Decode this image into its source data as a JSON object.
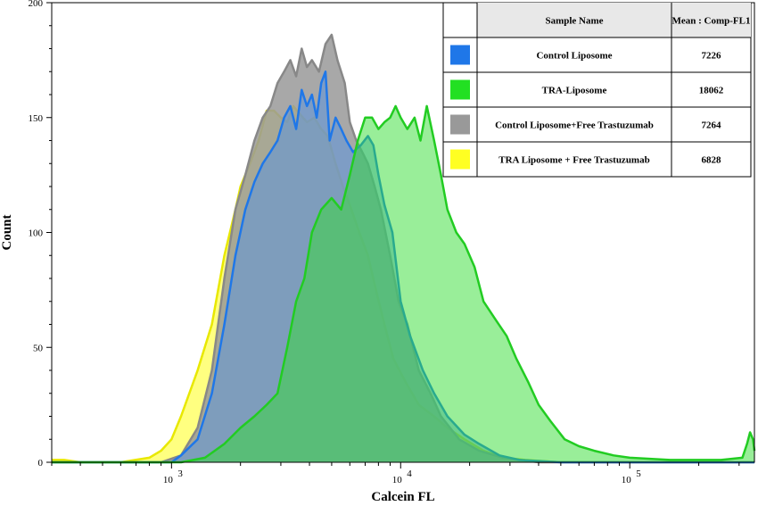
{
  "chart_data": {
    "type": "area",
    "xlabel": "Calcein FL",
    "ylabel": "Count",
    "x_scale": "log",
    "xlim": [
      300,
      350000
    ],
    "ylim": [
      0,
      200
    ],
    "y_ticks": [
      0,
      50,
      100,
      150,
      200
    ],
    "x_ticks": [
      {
        "value": 1000,
        "base": "10",
        "exp": "3"
      },
      {
        "value": 10000,
        "base": "10",
        "exp": "4"
      },
      {
        "value": 100000,
        "base": "10",
        "exp": "5"
      }
    ],
    "grid": false,
    "legend_position": "top-right",
    "legend_table": {
      "header_name": "Sample Name",
      "header_value": "Mean : Comp-FL1",
      "rows": [
        {
          "name": "Control Liposome",
          "mean": "7226",
          "color": "#1f77e8"
        },
        {
          "name": "TRA-Liposome",
          "mean": "18062",
          "color": "#22e022"
        },
        {
          "name": "Control Liposome+Free Trastuzumab",
          "mean": "7264",
          "color": "#999999"
        },
        {
          "name": "TRA Liposome + Free Trastuzumab",
          "mean": "6828",
          "color": "#ffff22"
        }
      ]
    },
    "series": [
      {
        "key": "tra_free",
        "fill": "#ffff55",
        "stroke": "#e8e800",
        "fill_opacity": 0.75,
        "points": [
          [
            300,
            1
          ],
          [
            340,
            1
          ],
          [
            400,
            0
          ],
          [
            600,
            0
          ],
          [
            800,
            2
          ],
          [
            900,
            5
          ],
          [
            1000,
            10
          ],
          [
            1100,
            20
          ],
          [
            1300,
            40
          ],
          [
            1500,
            60
          ],
          [
            1700,
            90
          ],
          [
            1900,
            110
          ],
          [
            2000,
            120
          ],
          [
            2200,
            130
          ],
          [
            2400,
            140
          ],
          [
            2600,
            153
          ],
          [
            2800,
            153
          ],
          [
            3000,
            150
          ],
          [
            3200,
            148
          ],
          [
            3400,
            155
          ],
          [
            3600,
            152
          ],
          [
            3900,
            148
          ],
          [
            4200,
            150
          ],
          [
            4500,
            145
          ],
          [
            4800,
            142
          ],
          [
            5200,
            130
          ],
          [
            5600,
            120
          ],
          [
            6100,
            110
          ],
          [
            6600,
            100
          ],
          [
            7200,
            90
          ],
          [
            7800,
            75
          ],
          [
            8500,
            60
          ],
          [
            9300,
            45
          ],
          [
            10500,
            35
          ],
          [
            12000,
            25
          ],
          [
            14000,
            20
          ],
          [
            16000,
            15
          ],
          [
            19000,
            10
          ],
          [
            23000,
            5
          ],
          [
            28000,
            2
          ],
          [
            35000,
            1
          ],
          [
            50000,
            0
          ],
          [
            350000,
            0
          ]
        ]
      },
      {
        "key": "control_free",
        "fill": "#999999",
        "stroke": "#888888",
        "fill_opacity": 0.85,
        "points": [
          [
            300,
            0
          ],
          [
            900,
            0
          ],
          [
            1100,
            3
          ],
          [
            1300,
            15
          ],
          [
            1500,
            40
          ],
          [
            1700,
            80
          ],
          [
            1900,
            110
          ],
          [
            2100,
            125
          ],
          [
            2300,
            140
          ],
          [
            2500,
            150
          ],
          [
            2700,
            155
          ],
          [
            2900,
            165
          ],
          [
            3100,
            170
          ],
          [
            3300,
            175
          ],
          [
            3500,
            168
          ],
          [
            3700,
            180
          ],
          [
            3900,
            172
          ],
          [
            4100,
            175
          ],
          [
            4400,
            170
          ],
          [
            4700,
            182
          ],
          [
            5000,
            186
          ],
          [
            5300,
            175
          ],
          [
            5700,
            165
          ],
          [
            6000,
            148
          ],
          [
            6400,
            140
          ],
          [
            6800,
            135
          ],
          [
            7200,
            130
          ],
          [
            7700,
            120
          ],
          [
            8200,
            110
          ],
          [
            9000,
            90
          ],
          [
            9800,
            70
          ],
          [
            10700,
            60
          ],
          [
            12000,
            40
          ],
          [
            13500,
            30
          ],
          [
            15000,
            20
          ],
          [
            18000,
            10
          ],
          [
            22000,
            5
          ],
          [
            28000,
            2
          ],
          [
            40000,
            0
          ],
          [
            350000,
            0
          ]
        ]
      },
      {
        "key": "control",
        "fill": "#5b93dd",
        "stroke": "#1f77e8",
        "fill_opacity": 0.55,
        "points": [
          [
            300,
            0
          ],
          [
            1000,
            0
          ],
          [
            1100,
            3
          ],
          [
            1300,
            10
          ],
          [
            1500,
            30
          ],
          [
            1700,
            60
          ],
          [
            1900,
            90
          ],
          [
            2100,
            110
          ],
          [
            2300,
            122
          ],
          [
            2500,
            130
          ],
          [
            2700,
            135
          ],
          [
            2900,
            140
          ],
          [
            3100,
            150
          ],
          [
            3300,
            155
          ],
          [
            3500,
            145
          ],
          [
            3700,
            162
          ],
          [
            3900,
            155
          ],
          [
            4100,
            160
          ],
          [
            4300,
            150
          ],
          [
            4500,
            165
          ],
          [
            4700,
            170
          ],
          [
            4900,
            140
          ],
          [
            5200,
            150
          ],
          [
            5500,
            145
          ],
          [
            5800,
            140
          ],
          [
            6200,
            135
          ],
          [
            6700,
            138
          ],
          [
            7200,
            142
          ],
          [
            7600,
            138
          ],
          [
            8000,
            125
          ],
          [
            8500,
            112
          ],
          [
            9200,
            100
          ],
          [
            10000,
            70
          ],
          [
            11000,
            55
          ],
          [
            12500,
            40
          ],
          [
            14000,
            30
          ],
          [
            16000,
            20
          ],
          [
            19000,
            12
          ],
          [
            22000,
            8
          ],
          [
            27000,
            3
          ],
          [
            33000,
            1
          ],
          [
            50000,
            0
          ],
          [
            350000,
            0
          ]
        ]
      },
      {
        "key": "tra",
        "fill": "#33dd33",
        "stroke": "#22cc22",
        "fill_opacity": 0.5,
        "points": [
          [
            300,
            0
          ],
          [
            1100,
            0
          ],
          [
            1400,
            2
          ],
          [
            1700,
            8
          ],
          [
            2000,
            15
          ],
          [
            2300,
            20
          ],
          [
            2600,
            25
          ],
          [
            2900,
            30
          ],
          [
            3200,
            50
          ],
          [
            3500,
            70
          ],
          [
            3800,
            80
          ],
          [
            4100,
            100
          ],
          [
            4500,
            110
          ],
          [
            5000,
            115
          ],
          [
            5500,
            110
          ],
          [
            6000,
            125
          ],
          [
            6500,
            140
          ],
          [
            7000,
            150
          ],
          [
            7500,
            150
          ],
          [
            8000,
            145
          ],
          [
            8500,
            148
          ],
          [
            9000,
            150
          ],
          [
            9500,
            155
          ],
          [
            10000,
            150
          ],
          [
            10700,
            145
          ],
          [
            11500,
            150
          ],
          [
            12200,
            140
          ],
          [
            13000,
            155
          ],
          [
            14000,
            140
          ],
          [
            15000,
            125
          ],
          [
            16000,
            110
          ],
          [
            17500,
            100
          ],
          [
            19000,
            95
          ],
          [
            21000,
            85
          ],
          [
            23000,
            70
          ],
          [
            26000,
            62
          ],
          [
            29000,
            55
          ],
          [
            32000,
            45
          ],
          [
            36000,
            35
          ],
          [
            40000,
            25
          ],
          [
            45000,
            18
          ],
          [
            52000,
            10
          ],
          [
            60000,
            7
          ],
          [
            70000,
            5
          ],
          [
            85000,
            3
          ],
          [
            100000,
            2
          ],
          [
            150000,
            1
          ],
          [
            250000,
            1
          ],
          [
            310000,
            2
          ],
          [
            325000,
            8
          ],
          [
            335000,
            13
          ],
          [
            345000,
            10
          ],
          [
            350000,
            5
          ]
        ]
      }
    ]
  }
}
